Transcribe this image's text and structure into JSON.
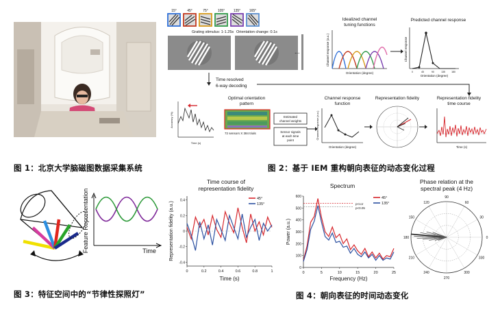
{
  "captions": {
    "fig1": "图 1：北京大学脑磁图数据采集系统",
    "fig2": "图 2：基于 IEM 重构朝向表征的动态变化过程",
    "fig3": "图 3：特征空间中的“节律性探照灯”",
    "fig4": "图 4：朝向表征的时间动态变化"
  },
  "fig2": {
    "orientations": [
      "15°",
      "45°",
      "75°",
      "105°",
      "135°",
      "165°"
    ],
    "orientation_colors": [
      "#2e6fd8",
      "#c2381f",
      "#d89a18",
      "#2f9a48",
      "#7a3fb0",
      "#5a8fd0"
    ],
    "grating_stimulus": "Grating stimulus: 1-1.25s",
    "orientation_change": "Orientation change: 0.1s",
    "ellipsis": "...",
    "time_resolved": "Time resolved",
    "six_way": "6-way decoding",
    "idealized_title": [
      "Idealized channel",
      "tuning functions"
    ],
    "idealized_ylabel": "Channel response (a.u.)",
    "idealized_xlabel": "Orientation (degree)",
    "predicted_title": "Predicted channel response",
    "predicted_ylabel": "Channel response",
    "predicted_xlabel": "Orientation (degree)",
    "predicted_ticks": [
      "0",
      "45",
      "90",
      "135",
      "180"
    ],
    "accuracy_label": "Accuracy (%)",
    "time_label": "Time (s)",
    "optimal_title": [
      "Optimal orientation",
      "pattern"
    ],
    "sensors_trials": "72 sensors X 384 trials",
    "estimated": [
      "Estimated",
      "channel weights"
    ],
    "sensor_signals": [
      "Sensor signals",
      "at each time",
      "point"
    ],
    "crf_title": [
      "Channel response",
      "function"
    ],
    "crf_ylabel": "Channel response (a.u.)",
    "crf_xlabel": "Orientation (degree)",
    "fidelity_title": "Representation fidelity",
    "fidelity_course_title": [
      "Representation fidelity",
      "time course"
    ],
    "fidelity_time": "Time (s)"
  },
  "fig3": {
    "ylabel": "Feature Representation",
    "xlabel": "Time",
    "beam_colors": [
      "#f0e000",
      "#d63ca0",
      "#2d8fe0",
      "#e0261e",
      "#28a428",
      "#1a2a8c"
    ]
  },
  "fig4": {
    "timecourse_title": [
      "Time course of",
      "representation fidelity"
    ],
    "timecourse_ylabel": "Representation fidelity (a.u.)",
    "timecourse_xlabel": "Time (s)",
    "spectrum_title": "Spectrum",
    "spectrum_ylabel": "Power (a.u.)",
    "spectrum_xlabel": "Frequency (Hz)",
    "p_cor": "p<cor",
    "p_005": "p<0.05",
    "phase_title": [
      "Phase relation at the",
      "spectral peak (4 Hz)"
    ],
    "legend": [
      {
        "name": "45°",
        "color": "#d6252b"
      },
      {
        "name": "135°",
        "color": "#2a4fa0"
      }
    ]
  },
  "chart_data": [
    {
      "type": "line",
      "title": "Time course of representation fidelity",
      "xlabel": "Time (s)",
      "ylabel": "Representation fidelity (a.u.)",
      "xlim": [
        0,
        1
      ],
      "ylim": [
        -0.45,
        0.45
      ],
      "x_ticks": [
        "0",
        "0.2",
        "0.4",
        "0.6",
        "0.8",
        "1"
      ],
      "y_ticks": [
        "0.4",
        "0.2",
        "0",
        "-0.2",
        "-0.4"
      ],
      "legend_position": "top-right",
      "x": [
        0,
        0.05,
        0.1,
        0.15,
        0.2,
        0.25,
        0.3,
        0.35,
        0.4,
        0.45,
        0.5,
        0.55,
        0.6,
        0.65,
        0.7,
        0.75,
        0.8,
        0.85,
        0.9,
        0.95,
        1.0
      ],
      "series": [
        {
          "name": "45°",
          "values": [
            0.05,
            -0.1,
            0.18,
            0.05,
            0.15,
            -0.05,
            0.2,
            0.02,
            -0.08,
            0.25,
            0.1,
            -0.02,
            0.3,
            0.05,
            -0.15,
            0.22,
            0.0,
            0.12,
            -0.05,
            0.18,
            0.05
          ]
        },
        {
          "name": "135°",
          "values": [
            0.1,
            -0.05,
            -0.25,
            0.12,
            -0.1,
            0.08,
            -0.18,
            0.15,
            0.02,
            -0.12,
            0.2,
            0.05,
            -0.1,
            0.22,
            -0.08,
            0.05,
            0.15,
            -0.12,
            0.1,
            0.0,
            0.08
          ]
        }
      ]
    },
    {
      "type": "line",
      "title": "Spectrum",
      "xlabel": "Frequency (Hz)",
      "ylabel": "Power (a.u.)",
      "xlim": [
        0,
        25
      ],
      "ylim": [
        0,
        600
      ],
      "x_ticks": [
        "0",
        "5",
        "10",
        "15",
        "20",
        "25"
      ],
      "y_ticks": [
        "600",
        "500",
        "400",
        "300",
        "200",
        "100",
        "0"
      ],
      "legend_position": "top-right",
      "x": [
        0,
        1,
        2,
        3,
        4,
        5,
        6,
        7,
        8,
        9,
        10,
        11,
        12,
        13,
        14,
        15,
        16,
        17,
        18,
        19,
        20,
        21,
        22,
        23,
        24,
        25
      ],
      "series": [
        {
          "name": "45°",
          "values": [
            60,
            180,
            380,
            430,
            580,
            420,
            300,
            260,
            340,
            250,
            280,
            200,
            240,
            150,
            190,
            140,
            110,
            160,
            90,
            130,
            80,
            120,
            70,
            100,
            90,
            160
          ]
        },
        {
          "name": "135°",
          "values": [
            50,
            150,
            320,
            390,
            520,
            380,
            260,
            230,
            290,
            210,
            220,
            170,
            180,
            120,
            160,
            110,
            90,
            130,
            80,
            110,
            60,
            100,
            60,
            80,
            70,
            130
          ]
        }
      ],
      "threshold_lines": [
        {
          "label": "p<cor",
          "value": 540
        },
        {
          "label": "p<0.05",
          "value": 510
        }
      ]
    },
    {
      "type": "scatter",
      "title": "Phase relation at the spectral peak (4 Hz)",
      "angle_ticks": [
        "0",
        "30",
        "60",
        "90",
        "120",
        "150",
        "180",
        "210",
        "240",
        "270",
        "300",
        "330"
      ],
      "r_ticks": [
        "2",
        "4",
        "6"
      ],
      "points": [
        {
          "angle": 175,
          "r": 6
        },
        {
          "angle": 178,
          "r": 5.5
        },
        {
          "angle": 182,
          "r": 5
        },
        {
          "angle": 170,
          "r": 4.5
        },
        {
          "angle": 185,
          "r": 4
        },
        {
          "angle": 165,
          "r": 3.5
        },
        {
          "angle": 190,
          "r": 3
        },
        {
          "angle": 160,
          "r": 2.5
        },
        {
          "angle": 195,
          "r": 2
        },
        {
          "angle": 200,
          "r": 1.5
        }
      ]
    }
  ]
}
